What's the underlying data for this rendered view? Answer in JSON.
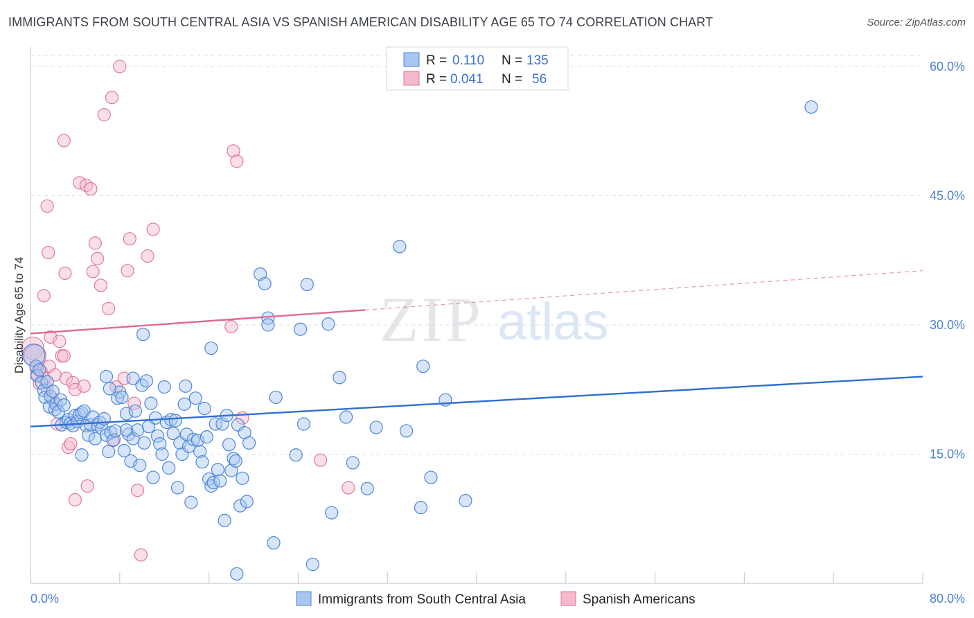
{
  "title": "IMMIGRANTS FROM SOUTH CENTRAL ASIA VS SPANISH AMERICAN DISABILITY AGE 65 TO 74 CORRELATION CHART",
  "source": "Source: ZipAtlas.com",
  "watermark": {
    "zip": "ZIP",
    "atlas": "atlas"
  },
  "colors": {
    "blue_fill": "#a8c6f0",
    "blue_stroke": "#4a86d8",
    "blue_line": "#2f6fd0",
    "pink_fill": "#f5b8cc",
    "pink_stroke": "#e0789b",
    "pink_line": "#e06a90",
    "grid": "#d8dce3",
    "axis_text": "#4a7fd6"
  },
  "legend": {
    "rows": [
      {
        "r_label": "R =",
        "r_value": "0.110",
        "n_label": "N =",
        "n_value": "135"
      },
      {
        "r_label": "R =",
        "r_value": "0.041",
        "n_label": "N =",
        "n_value": "56"
      }
    ]
  },
  "bottom_legend": [
    "Immigrants from South Central Asia",
    "Spanish Americans"
  ],
  "chart_data": {
    "type": "scatter",
    "xlabel": "",
    "ylabel": "Disability Age 65 to 74",
    "xlim": [
      0,
      80
    ],
    "ylim": [
      0,
      62
    ],
    "x_ticks": [
      "0.0%",
      "80.0%"
    ],
    "y_ticks": [
      {
        "value": 15,
        "label": "15.0%"
      },
      {
        "value": 30,
        "label": "30.0%"
      },
      {
        "value": 45,
        "label": "45.0%"
      },
      {
        "value": 60,
        "label": "60.0%"
      }
    ],
    "grid": true,
    "series": [
      {
        "name": "Immigrants from South Central Asia",
        "trend": {
          "x": [
            0,
            80
          ],
          "y": [
            18.2,
            24.0
          ],
          "solid_to": 80
        },
        "points": [
          [
            0.3,
            26.5
          ],
          [
            0.5,
            25.2
          ],
          [
            0.6,
            24.1
          ],
          [
            0.8,
            24.8
          ],
          [
            1.0,
            23.3
          ],
          [
            1.2,
            22.4
          ],
          [
            1.3,
            21.6
          ],
          [
            1.5,
            23.4
          ],
          [
            1.7,
            20.5
          ],
          [
            1.8,
            21.7
          ],
          [
            2.0,
            22.3
          ],
          [
            2.2,
            20.2
          ],
          [
            2.3,
            20.8
          ],
          [
            2.5,
            19.9
          ],
          [
            2.7,
            21.3
          ],
          [
            2.8,
            18.4
          ],
          [
            3.0,
            20.7
          ],
          [
            3.2,
            18.7
          ],
          [
            3.4,
            19.0
          ],
          [
            3.6,
            18.6
          ],
          [
            3.8,
            18.3
          ],
          [
            4.0,
            19.5
          ],
          [
            4.2,
            18.8
          ],
          [
            4.4,
            19.6
          ],
          [
            4.6,
            19.8
          ],
          [
            4.8,
            20.0
          ],
          [
            5.0,
            18.3
          ],
          [
            5.2,
            17.2
          ],
          [
            5.4,
            18.4
          ],
          [
            5.6,
            19.3
          ],
          [
            5.8,
            16.8
          ],
          [
            6.0,
            18.4
          ],
          [
            6.2,
            18.7
          ],
          [
            6.4,
            18.0
          ],
          [
            6.6,
            19.1
          ],
          [
            6.8,
            17.2
          ],
          [
            7.0,
            15.3
          ],
          [
            7.2,
            17.5
          ],
          [
            7.4,
            16.6
          ],
          [
            7.6,
            17.7
          ],
          [
            7.8,
            21.5
          ],
          [
            8.0,
            22.2
          ],
          [
            8.2,
            21.6
          ],
          [
            8.4,
            15.4
          ],
          [
            8.6,
            19.7
          ],
          [
            8.8,
            17.3
          ],
          [
            9.0,
            14.2
          ],
          [
            9.2,
            16.8
          ],
          [
            9.4,
            20.0
          ],
          [
            9.6,
            17.8
          ],
          [
            9.8,
            13.7
          ],
          [
            10.0,
            23.0
          ],
          [
            10.2,
            16.3
          ],
          [
            10.4,
            23.5
          ],
          [
            10.6,
            18.2
          ],
          [
            10.8,
            20.9
          ],
          [
            11.0,
            12.3
          ],
          [
            11.2,
            19.2
          ],
          [
            11.4,
            17.1
          ],
          [
            11.6,
            16.2
          ],
          [
            11.8,
            15.0
          ],
          [
            12.0,
            22.8
          ],
          [
            12.2,
            18.7
          ],
          [
            12.4,
            13.4
          ],
          [
            12.6,
            19.0
          ],
          [
            12.8,
            17.4
          ],
          [
            13.0,
            18.9
          ],
          [
            13.2,
            11.1
          ],
          [
            13.4,
            16.3
          ],
          [
            13.6,
            15.0
          ],
          [
            13.8,
            20.8
          ],
          [
            14.0,
            17.3
          ],
          [
            14.2,
            15.9
          ],
          [
            14.4,
            9.4
          ],
          [
            14.6,
            16.7
          ],
          [
            14.8,
            21.5
          ],
          [
            15.0,
            16.6
          ],
          [
            15.2,
            15.3
          ],
          [
            15.4,
            14.1
          ],
          [
            15.6,
            20.3
          ],
          [
            15.8,
            17.0
          ],
          [
            16.0,
            12.1
          ],
          [
            16.2,
            11.3
          ],
          [
            16.4,
            11.7
          ],
          [
            16.6,
            18.5
          ],
          [
            16.8,
            13.2
          ],
          [
            17.0,
            11.9
          ],
          [
            17.2,
            18.5
          ],
          [
            17.4,
            7.3
          ],
          [
            17.6,
            19.5
          ],
          [
            17.8,
            16.1
          ],
          [
            18.0,
            13.1
          ],
          [
            18.2,
            14.5
          ],
          [
            18.4,
            14.2
          ],
          [
            18.6,
            18.4
          ],
          [
            18.8,
            9.0
          ],
          [
            19.0,
            12.2
          ],
          [
            19.2,
            17.5
          ],
          [
            19.4,
            9.5
          ],
          [
            19.6,
            16.3
          ],
          [
            4.6,
            14.9
          ],
          [
            6.8,
            24.0
          ],
          [
            7.1,
            22.6
          ],
          [
            8.6,
            17.8
          ],
          [
            9.2,
            23.8
          ],
          [
            10.1,
            28.9
          ],
          [
            13.9,
            22.9
          ],
          [
            16.2,
            27.3
          ],
          [
            21.3,
            30.8
          ],
          [
            20.6,
            35.9
          ],
          [
            21.0,
            34.8
          ],
          [
            21.3,
            30.0
          ],
          [
            24.8,
            34.7
          ],
          [
            23.8,
            14.9
          ],
          [
            22.0,
            21.6
          ],
          [
            24.5,
            18.5
          ],
          [
            24.2,
            29.5
          ],
          [
            26.7,
            30.1
          ],
          [
            27.7,
            23.9
          ],
          [
            28.3,
            19.3
          ],
          [
            31.0,
            18.1
          ],
          [
            33.7,
            17.7
          ],
          [
            35.2,
            25.2
          ],
          [
            37.2,
            21.3
          ],
          [
            39.0,
            9.6
          ],
          [
            35.0,
            8.8
          ],
          [
            35.9,
            12.3
          ],
          [
            30.2,
            11.0
          ],
          [
            27.0,
            8.2
          ],
          [
            28.9,
            14.0
          ],
          [
            70.0,
            55.3
          ],
          [
            33.1,
            39.1
          ],
          [
            21.8,
            4.7
          ],
          [
            25.3,
            2.2
          ],
          [
            18.5,
            1.1
          ]
        ]
      },
      {
        "name": "Spanish Americans",
        "trend": {
          "x": [
            0,
            80
          ],
          "y": [
            29.0,
            36.3
          ],
          "solid_to": 30
        },
        "points": [
          [
            0.2,
            27.3
          ],
          [
            0.4,
            26.4
          ],
          [
            0.5,
            25.0
          ],
          [
            0.6,
            24.3
          ],
          [
            0.8,
            23.2
          ],
          [
            1.0,
            24.5
          ],
          [
            1.2,
            23.8
          ],
          [
            1.5,
            22.6
          ],
          [
            1.7,
            25.2
          ],
          [
            1.8,
            28.6
          ],
          [
            2.0,
            21.3
          ],
          [
            2.2,
            24.2
          ],
          [
            2.4,
            18.5
          ],
          [
            2.6,
            28.1
          ],
          [
            2.8,
            26.4
          ],
          [
            3.0,
            26.4
          ],
          [
            3.2,
            23.8
          ],
          [
            3.4,
            15.8
          ],
          [
            3.6,
            16.2
          ],
          [
            3.8,
            23.3
          ],
          [
            4.0,
            22.5
          ],
          [
            4.4,
            46.5
          ],
          [
            5.0,
            46.2
          ],
          [
            5.4,
            45.8
          ],
          [
            5.6,
            36.2
          ],
          [
            5.8,
            39.5
          ],
          [
            6.0,
            37.7
          ],
          [
            6.3,
            34.6
          ],
          [
            6.6,
            54.4
          ],
          [
            7.0,
            31.9
          ],
          [
            7.3,
            56.4
          ],
          [
            7.5,
            16.7
          ],
          [
            7.7,
            22.8
          ],
          [
            8.0,
            60.0
          ],
          [
            8.4,
            23.8
          ],
          [
            8.7,
            36.3
          ],
          [
            8.9,
            40.0
          ],
          [
            9.3,
            20.9
          ],
          [
            9.6,
            10.8
          ],
          [
            9.9,
            3.3
          ],
          [
            10.5,
            38.0
          ],
          [
            11.0,
            41.1
          ],
          [
            1.5,
            43.8
          ],
          [
            1.6,
            38.4
          ],
          [
            1.2,
            33.4
          ],
          [
            3.0,
            51.4
          ],
          [
            3.1,
            36.0
          ],
          [
            4.0,
            9.7
          ],
          [
            5.1,
            11.3
          ],
          [
            4.8,
            22.9
          ],
          [
            18.0,
            29.8
          ],
          [
            18.2,
            50.2
          ],
          [
            18.5,
            49.0
          ],
          [
            19.0,
            19.2
          ],
          [
            26.0,
            14.3
          ],
          [
            28.5,
            11.1
          ]
        ]
      }
    ]
  }
}
